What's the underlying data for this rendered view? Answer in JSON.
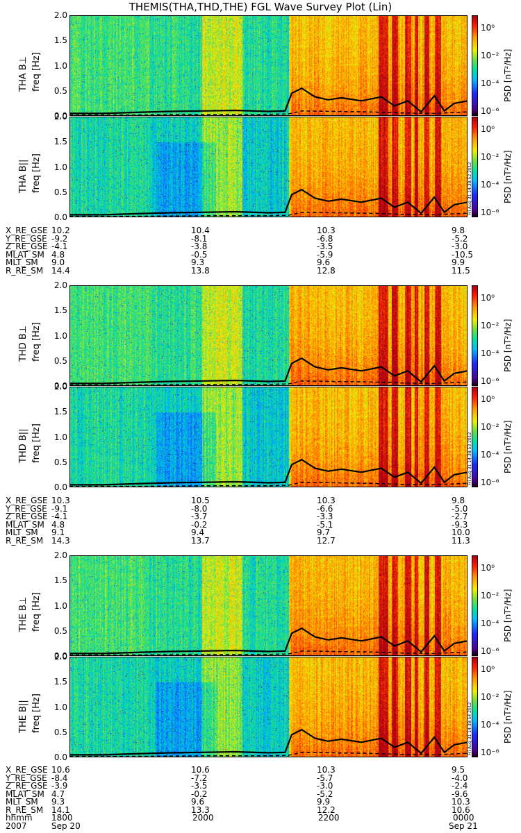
{
  "title": "THEMIS(THA,THD,THE) FGL Wave Survey Plot (Lin)",
  "colors": {
    "background": "#4fd2b0",
    "curve": "#000000"
  },
  "colorbar": {
    "label": "PSD [nT²/Hz]",
    "ticks": [
      "10⁰",
      "10⁻²",
      "10⁻⁴",
      "10⁻⁶"
    ],
    "scale": "log"
  },
  "yaxis": {
    "ticks": [
      "2.0",
      "1.5",
      "1.0",
      "0.5",
      "0.0"
    ],
    "unit_label": "freq [Hz]"
  },
  "timestamps": [
    "Fri Aug 31 14:38:52 2012",
    "Fri Aug 31 14:38:53 2012",
    "Fri Aug 31 14:38:54 2012"
  ],
  "ephemeris": {
    "labels": [
      "X_RE_GSE",
      "Y_RE_GSE",
      "Z_RE_GSE",
      "MLAT_SM",
      "MLT_SM",
      "R_RE_SM"
    ],
    "probes": [
      {
        "rows": [
          [
            "10.2",
            "10.4",
            "10.3",
            "9.8"
          ],
          [
            "-9.2",
            "-8.1",
            "-6.8",
            "-5.2"
          ],
          [
            "-4.1",
            "-3.8",
            "-3.5",
            "-3.0"
          ],
          [
            "4.8",
            "-0.5",
            "-5.9",
            "-10.5"
          ],
          [
            "9.0",
            "9.3",
            "9.6",
            "9.9"
          ],
          [
            "14.4",
            "13.8",
            "12.8",
            "11.5"
          ]
        ]
      },
      {
        "rows": [
          [
            "10.3",
            "10.5",
            "10.3",
            "9.8"
          ],
          [
            "-9.1",
            "-8.0",
            "-6.6",
            "-5.0"
          ],
          [
            "-4.1",
            "-3.7",
            "-3.3",
            "-2.7"
          ],
          [
            "4.8",
            "-0.2",
            "-5.1",
            "-9.3"
          ],
          [
            "9.1",
            "9.4",
            "9.7",
            "10.0"
          ],
          [
            "14.3",
            "13.7",
            "12.7",
            "11.3"
          ]
        ]
      },
      {
        "rows": [
          [
            "10.6",
            "10.6",
            "10.3",
            "9.5"
          ],
          [
            "-8.4",
            "-7.2",
            "-5.7",
            "-4.0"
          ],
          [
            "-3.9",
            "-3.5",
            "-3.0",
            "-2.4"
          ],
          [
            "4.7",
            "-0.2",
            "-5.2",
            "-9.6"
          ],
          [
            "9.3",
            "9.6",
            "9.9",
            "10.3"
          ],
          [
            "14.1",
            "13.3",
            "12.2",
            "10.6"
          ]
        ]
      }
    ],
    "time_label": "hhmm",
    "year_label": "2007",
    "time_ticks": [
      "1800",
      "2000",
      "2200",
      "0000"
    ],
    "date_ticks": [
      "Sep 20",
      "Sep 21"
    ]
  },
  "chart_data": {
    "type": "heatmap",
    "title": "THEMIS(THA,THD,THE) FGL Wave Survey Plot (Lin)",
    "xlabel": "hhmm",
    "x_range": [
      "2007-09-20 18:00",
      "2007-09-21 00:00"
    ],
    "x_ticks": [
      "1800",
      "2000",
      "2200",
      "0000"
    ],
    "ylabel": "freq [Hz]",
    "ylim": [
      0,
      2.0
    ],
    "colorbar": {
      "label": "PSD [nT²/Hz]",
      "range_log10": [
        -7,
        1.3
      ]
    },
    "panels": [
      {
        "label": "THA B⊥",
        "probe": "THA",
        "component": "perp"
      },
      {
        "label": "THA B||",
        "probe": "THA",
        "component": "par"
      },
      {
        "label": "THD B⊥",
        "probe": "THD",
        "component": "perp"
      },
      {
        "label": "THD B||",
        "probe": "THD",
        "component": "par"
      },
      {
        "label": "THE B⊥",
        "probe": "THE",
        "component": "perp"
      },
      {
        "label": "THE B||",
        "probe": "THE",
        "component": "par"
      }
    ],
    "curves": {
      "solid": {
        "x_hour": [
          18.0,
          18.5,
          19.0,
          19.5,
          20.0,
          20.5,
          21.0,
          21.25,
          21.35,
          21.5,
          21.7,
          21.9,
          22.1,
          22.4,
          22.7,
          22.9,
          23.1,
          23.3,
          23.5,
          23.65,
          23.8,
          24.0
        ],
        "freq_hz": [
          0.05,
          0.05,
          0.07,
          0.09,
          0.1,
          0.11,
          0.09,
          0.1,
          0.45,
          0.55,
          0.38,
          0.32,
          0.36,
          0.3,
          0.38,
          0.2,
          0.3,
          0.08,
          0.4,
          0.1,
          0.25,
          0.3
        ]
      },
      "dashed": {
        "x_hour": [
          18.0,
          19.0,
          20.0,
          21.0,
          21.3,
          21.5,
          22.0,
          22.5,
          23.0,
          23.5,
          24.0
        ],
        "freq_hz": [
          0.02,
          0.02,
          0.03,
          0.03,
          0.04,
          0.1,
          0.09,
          0.08,
          0.06,
          0.05,
          0.08
        ]
      }
    }
  }
}
